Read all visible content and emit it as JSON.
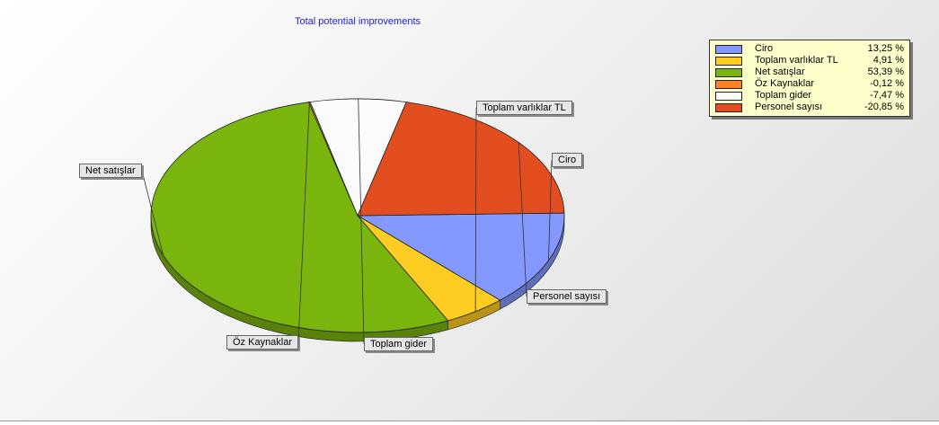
{
  "chart_data": {
    "type": "pie",
    "title": "Total potential improvements",
    "slices": [
      {
        "label": "Ciro",
        "legend_value": "13,25 %",
        "value": 13.25,
        "color": "#8399ff"
      },
      {
        "label": "Toplam varlıklar TL",
        "legend_value": "4,91 %",
        "value": 4.91,
        "color": "#ffcc22"
      },
      {
        "label": "Net satışlar",
        "legend_value": "53,39 %",
        "value": 53.39,
        "color": "#7ab50e"
      },
      {
        "label": "Öz Kaynaklar",
        "legend_value": "-0,12 %",
        "value": -0.12,
        "color": "#ff7f27"
      },
      {
        "label": "Toplam gider",
        "legend_value": "-7,47 %",
        "value": -7.47,
        "color": "#fbfbfb"
      },
      {
        "label": "Personel sayısı",
        "legend_value": "-20,85 %",
        "value": -20.85,
        "color": "#e24e20"
      }
    ],
    "legend_position": "top-right"
  }
}
